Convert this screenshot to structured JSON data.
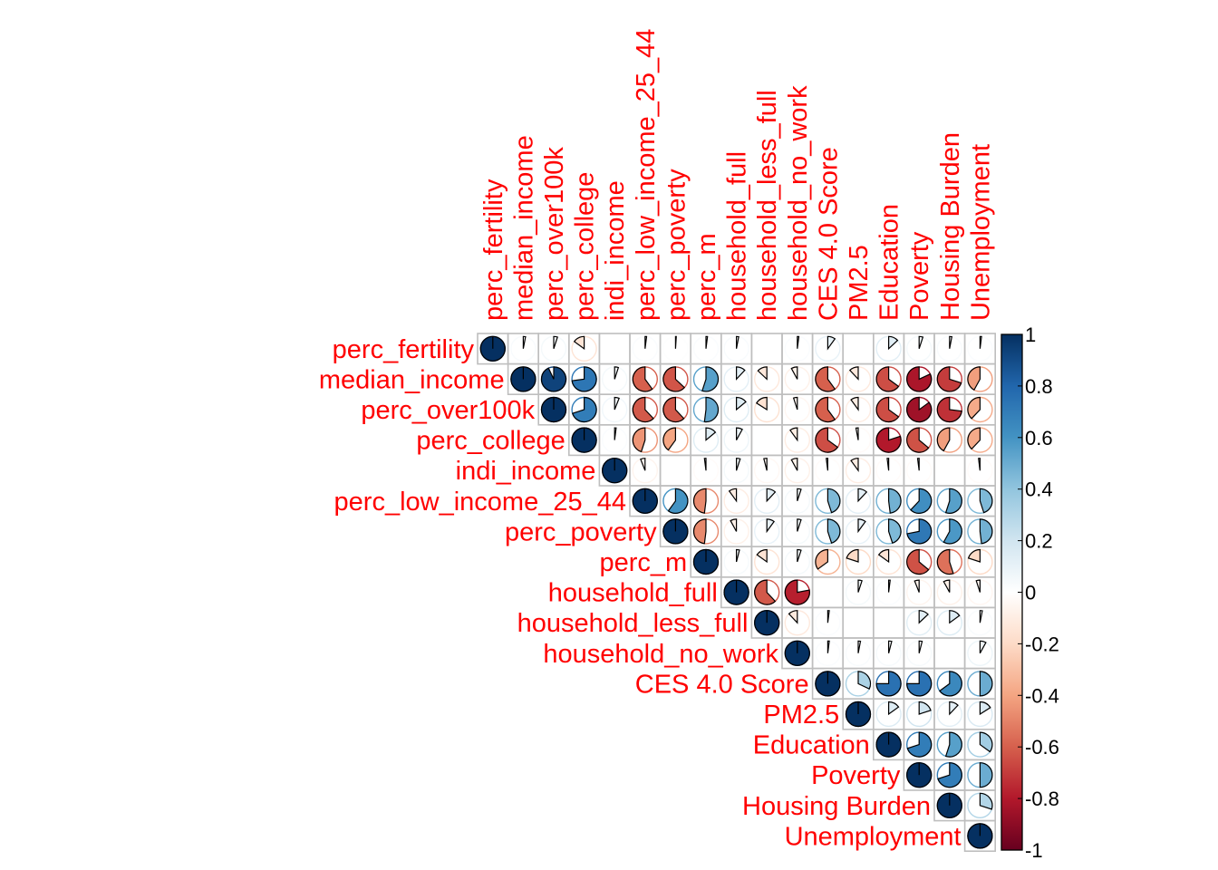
{
  "chart_data": {
    "type": "heatmap",
    "subtype": "correlation-matrix-pie-upper-triangle",
    "title": "",
    "variables": [
      "perc_fertility",
      "median_income",
      "perc_over100k",
      "perc_college",
      "indi_income",
      "perc_low_income_25_44",
      "perc_poverty",
      "perc_m",
      "household_full",
      "household_less_full",
      "household_no_work",
      "CES 4.0 Score",
      "PM2.5",
      "Education",
      "Poverty",
      "Housing Burden",
      "Unemployment"
    ],
    "matrix": [
      [
        1,
        0.03,
        0.05,
        -0.15,
        0.0,
        0.02,
        0.01,
        0.02,
        0.03,
        0.0,
        0.02,
        0.1,
        0.0,
        0.13,
        0.05,
        0.03,
        0.02
      ],
      [
        null,
        1,
        0.93,
        0.73,
        0.05,
        -0.6,
        -0.63,
        0.55,
        0.12,
        -0.13,
        -0.08,
        -0.6,
        -0.12,
        -0.65,
        -0.82,
        -0.7,
        -0.42
      ],
      [
        null,
        null,
        1,
        0.7,
        0.06,
        -0.62,
        -0.62,
        0.52,
        0.14,
        -0.16,
        -0.05,
        -0.6,
        -0.1,
        -0.65,
        -0.85,
        -0.73,
        -0.38
      ],
      [
        null,
        null,
        null,
        1,
        0.02,
        -0.45,
        -0.4,
        0.14,
        0.08,
        0.0,
        -0.1,
        -0.65,
        -0.03,
        -0.8,
        -0.64,
        -0.42,
        -0.38
      ],
      [
        null,
        null,
        null,
        null,
        1,
        -0.06,
        0.0,
        -0.02,
        0.05,
        -0.04,
        -0.08,
        -0.02,
        -0.1,
        -0.02,
        -0.02,
        0.0,
        -0.02
      ],
      [
        null,
        null,
        null,
        null,
        null,
        1,
        0.6,
        -0.48,
        -0.1,
        0.12,
        0.05,
        0.45,
        0.12,
        0.48,
        0.62,
        0.55,
        0.45
      ],
      [
        null,
        null,
        null,
        null,
        null,
        null,
        1,
        -0.48,
        -0.08,
        0.1,
        0.05,
        0.45,
        0.1,
        0.45,
        0.72,
        0.58,
        0.48
      ],
      [
        null,
        null,
        null,
        null,
        null,
        null,
        null,
        1,
        0.04,
        -0.15,
        0.05,
        -0.35,
        -0.2,
        -0.15,
        -0.64,
        -0.55,
        -0.2
      ],
      [
        null,
        null,
        null,
        null,
        null,
        null,
        null,
        null,
        1,
        -0.62,
        -0.78,
        0.0,
        0.05,
        0.02,
        -0.06,
        -0.08,
        -0.05
      ],
      [
        null,
        null,
        null,
        null,
        null,
        null,
        null,
        null,
        null,
        1,
        -0.12,
        0.02,
        0.0,
        0.0,
        0.13,
        0.15,
        0.03
      ],
      [
        null,
        null,
        null,
        null,
        null,
        null,
        null,
        null,
        null,
        null,
        1,
        0.02,
        0.03,
        0.04,
        0.04,
        0.0,
        0.08
      ],
      [
        null,
        null,
        null,
        null,
        null,
        null,
        null,
        null,
        null,
        null,
        null,
        1,
        0.32,
        0.75,
        0.75,
        0.65,
        0.5
      ],
      [
        null,
        null,
        null,
        null,
        null,
        null,
        null,
        null,
        null,
        null,
        null,
        null,
        1,
        0.15,
        0.2,
        0.12,
        0.16
      ],
      [
        null,
        null,
        null,
        null,
        null,
        null,
        null,
        null,
        null,
        null,
        null,
        null,
        null,
        1,
        0.7,
        0.55,
        0.35
      ],
      [
        null,
        null,
        null,
        null,
        null,
        null,
        null,
        null,
        null,
        null,
        null,
        null,
        null,
        null,
        1,
        0.7,
        0.5
      ],
      [
        null,
        null,
        null,
        null,
        null,
        null,
        null,
        null,
        null,
        null,
        null,
        null,
        null,
        null,
        null,
        1,
        0.3
      ],
      [
        null,
        null,
        null,
        null,
        null,
        null,
        null,
        null,
        null,
        null,
        null,
        null,
        null,
        null,
        null,
        null,
        1
      ]
    ],
    "colorbar": {
      "range": [
        -1,
        1
      ],
      "ticks": [
        "1",
        "0.8",
        "0.6",
        "0.4",
        "0.2",
        "0",
        "-0.2",
        "-0.4",
        "-0.6",
        "-0.8",
        "-1"
      ]
    },
    "label_color": "#ff0000",
    "palette": [
      "#67001f",
      "#b2182b",
      "#d6604d",
      "#f4a582",
      "#fddbc7",
      "#ffffff",
      "#d1e5f0",
      "#92c5de",
      "#4393c3",
      "#2166ac",
      "#053061"
    ],
    "grid": true,
    "legend": "right"
  }
}
